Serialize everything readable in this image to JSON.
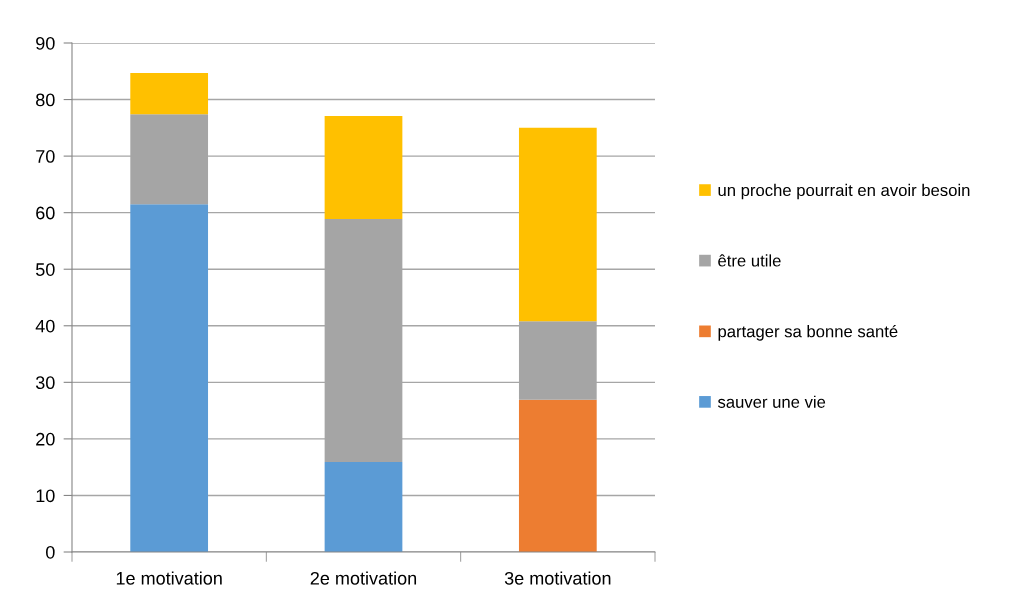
{
  "chart_data": {
    "type": "bar",
    "stacked": true,
    "categories": [
      "1e motivation",
      "2e motivation",
      "3e motivation"
    ],
    "series": [
      {
        "name": "sauver une vie",
        "color": "#5b9bd5",
        "values": [
          61.5,
          15.9,
          null
        ]
      },
      {
        "name": "partager sa bonne santé",
        "color": "#ed7d31",
        "values": [
          null,
          null,
          26.9
        ]
      },
      {
        "name": "être utile",
        "color": "#a5a5a5",
        "values": [
          15.9,
          43.0,
          13.9
        ]
      },
      {
        "name": "un proche pourrait en avoir besoin",
        "color": "#ffc000",
        "values": [
          7.3,
          18.2,
          34.2
        ]
      }
    ],
    "ylim": [
      0,
      90
    ],
    "yticks": [
      0,
      10,
      20,
      30,
      40,
      50,
      60,
      70,
      80,
      90
    ],
    "grid": "y",
    "legend": "right"
  }
}
